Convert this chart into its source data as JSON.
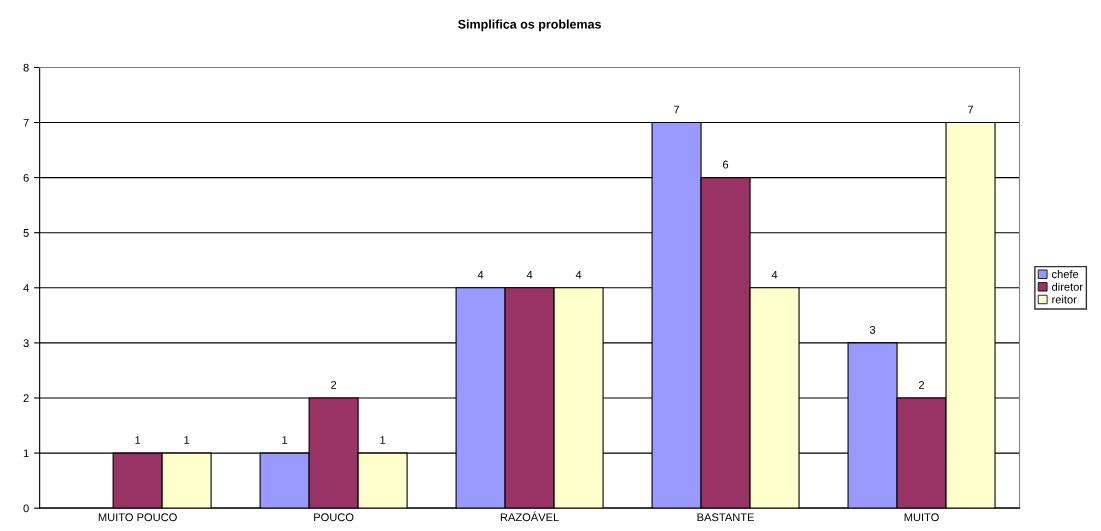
{
  "chart_data": {
    "type": "bar",
    "title": "Simplifica os problemas",
    "categories": [
      "MUITO POUCO",
      "POUCO",
      "RAZOÁVEL",
      "BASTANTE",
      "MUITO"
    ],
    "series": [
      {
        "name": "chefe",
        "color": "#9999ff",
        "values": [
          null,
          1,
          4,
          7,
          3
        ]
      },
      {
        "name": "diretor",
        "color": "#993366",
        "values": [
          1,
          2,
          4,
          6,
          2
        ]
      },
      {
        "name": "reitor",
        "color": "#ffffcc",
        "values": [
          1,
          1,
          4,
          4,
          7
        ]
      }
    ],
    "ylim": [
      0,
      8
    ],
    "yticks": [
      0,
      1,
      2,
      3,
      4,
      5,
      6,
      7,
      8
    ],
    "grid": "y",
    "legend": "right",
    "data_labels": true
  }
}
